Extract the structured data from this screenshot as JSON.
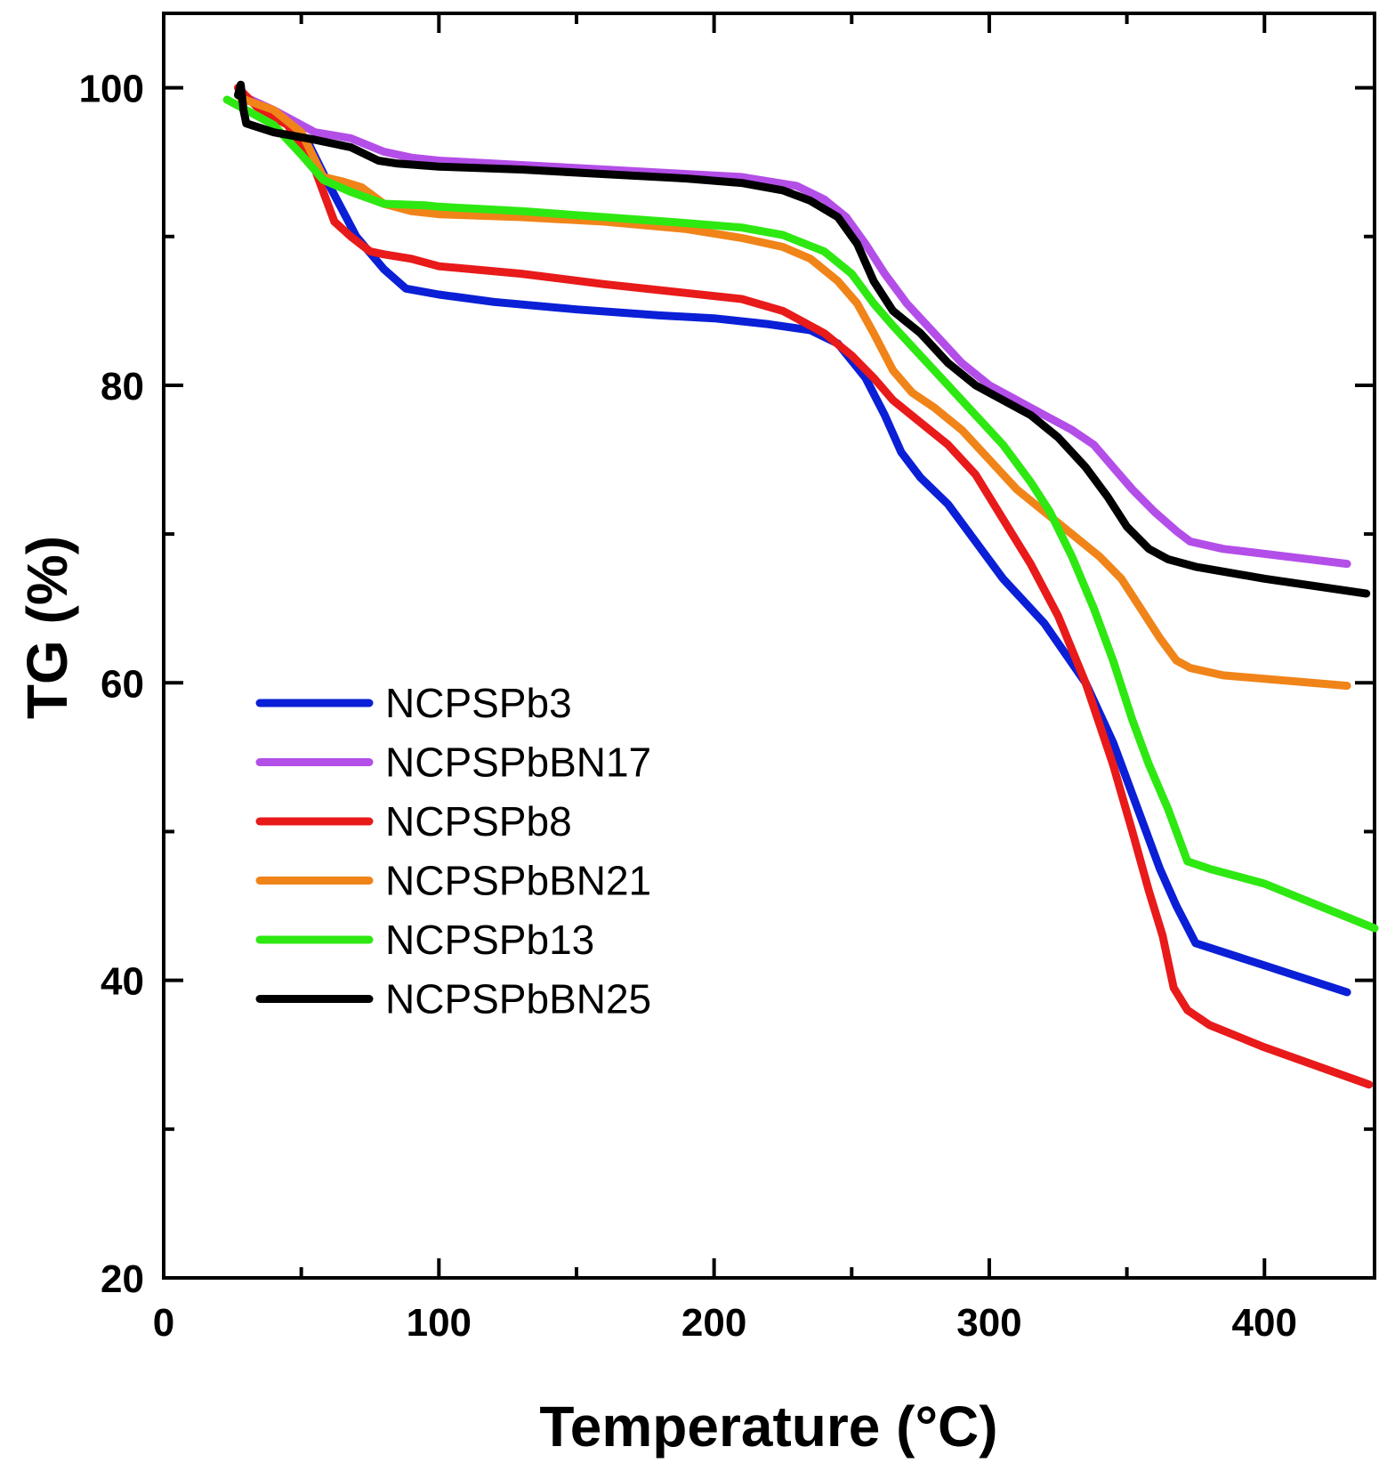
{
  "chart_data": {
    "type": "line",
    "xlabel": "Temperature (°C)",
    "ylabel": "TG (%)",
    "xlim": [
      0,
      440
    ],
    "ylim": [
      20,
      105
    ],
    "x_ticks": [
      0,
      100,
      200,
      300,
      400
    ],
    "y_ticks": [
      20,
      40,
      60,
      80,
      100
    ],
    "grid": false,
    "legend_position": "middle-left",
    "series": [
      {
        "name": "NCPSPb3",
        "color": "#0a1fd6",
        "x": [
          28,
          40,
          52,
          60,
          70,
          80,
          88,
          100,
          120,
          150,
          180,
          200,
          220,
          235,
          245,
          255,
          262,
          268,
          275,
          285,
          295,
          305,
          320,
          335,
          345,
          355,
          362,
          368,
          375,
          400,
          430
        ],
        "y": [
          99.5,
          98.2,
          96.5,
          93.5,
          90.0,
          87.8,
          86.5,
          86.1,
          85.6,
          85.1,
          84.7,
          84.5,
          84.1,
          83.7,
          82.8,
          80.5,
          78.0,
          75.5,
          73.8,
          72.0,
          69.5,
          67.0,
          64.0,
          60.0,
          56.0,
          51.0,
          47.5,
          45.0,
          42.5,
          41.0,
          39.2
        ]
      },
      {
        "name": "NCPSPbBN17",
        "color": "#b44ee8",
        "x": [
          28,
          40,
          55,
          68,
          80,
          90,
          100,
          130,
          160,
          190,
          210,
          230,
          240,
          248,
          255,
          262,
          270,
          280,
          290,
          300,
          310,
          320,
          330,
          338,
          345,
          352,
          360,
          368,
          373,
          385,
          430
        ],
        "y": [
          99.5,
          98.5,
          97.0,
          96.6,
          95.7,
          95.3,
          95.1,
          94.8,
          94.5,
          94.2,
          94.0,
          93.4,
          92.5,
          91.3,
          89.5,
          87.5,
          85.5,
          83.5,
          81.5,
          80.0,
          79.0,
          78.0,
          77.0,
          76.0,
          74.5,
          73.0,
          71.5,
          70.2,
          69.5,
          69.0,
          68.0
        ]
      },
      {
        "name": "NCPSPb8",
        "color": "#e81a1a",
        "x": [
          27,
          35,
          45,
          55,
          62,
          68,
          75,
          80,
          90,
          100,
          130,
          160,
          190,
          210,
          225,
          240,
          250,
          258,
          265,
          275,
          285,
          295,
          305,
          315,
          325,
          335,
          345,
          352,
          358,
          363,
          367,
          372,
          380,
          400,
          438
        ],
        "y": [
          100,
          98.5,
          97.5,
          94.5,
          91.0,
          90.0,
          89.0,
          88.8,
          88.5,
          88.0,
          87.5,
          86.8,
          86.2,
          85.8,
          85.0,
          83.5,
          82.0,
          80.5,
          79.0,
          77.5,
          76.0,
          74.0,
          71.0,
          68.0,
          64.5,
          60.0,
          54.5,
          50.0,
          46.0,
          43.0,
          39.5,
          38.0,
          37.0,
          35.5,
          33.0
        ]
      },
      {
        "name": "NCPSPbBN21",
        "color": "#f08419",
        "x": [
          28,
          40,
          50,
          58,
          65,
          72,
          80,
          90,
          100,
          130,
          160,
          190,
          210,
          225,
          235,
          245,
          252,
          258,
          265,
          272,
          280,
          290,
          300,
          310,
          320,
          330,
          340,
          348,
          355,
          362,
          368,
          373,
          385,
          430
        ],
        "y": [
          99.3,
          98.5,
          97.0,
          94.0,
          93.7,
          93.3,
          92.2,
          91.7,
          91.5,
          91.3,
          91.0,
          90.5,
          89.9,
          89.3,
          88.5,
          87.0,
          85.5,
          83.5,
          81.0,
          79.5,
          78.5,
          77.0,
          75.0,
          73.0,
          71.5,
          70.0,
          68.5,
          67.0,
          65.0,
          63.0,
          61.5,
          61.0,
          60.5,
          59.8
        ]
      },
      {
        "name": "NCPSPb13",
        "color": "#2ee812",
        "x": [
          23,
          30,
          40,
          50,
          58,
          68,
          80,
          95,
          100,
          130,
          160,
          190,
          210,
          225,
          240,
          250,
          258,
          265,
          275,
          285,
          295,
          305,
          315,
          322,
          330,
          338,
          345,
          352,
          358,
          365,
          370,
          372,
          380,
          400,
          440
        ],
        "y": [
          99.2,
          98.5,
          97.5,
          95.5,
          93.8,
          93.0,
          92.2,
          92.1,
          92.0,
          91.7,
          91.3,
          90.9,
          90.6,
          90.1,
          89.0,
          87.5,
          85.5,
          84.0,
          82.0,
          80.0,
          78.0,
          76.0,
          73.5,
          71.5,
          68.5,
          65.0,
          61.5,
          57.5,
          54.5,
          51.5,
          49.0,
          48.0,
          47.5,
          46.5,
          43.5
        ]
      },
      {
        "name": "NCPSPbBN25",
        "color": "#000000",
        "x": [
          27,
          28,
          29,
          30,
          40,
          55,
          68,
          78,
          85,
          100,
          130,
          160,
          190,
          210,
          225,
          235,
          245,
          252,
          258,
          265,
          275,
          285,
          295,
          305,
          315,
          325,
          335,
          343,
          350,
          358,
          365,
          375,
          400,
          437
        ],
        "y": [
          99.5,
          100.2,
          98.5,
          97.6,
          97.0,
          96.5,
          96.0,
          95.1,
          94.9,
          94.7,
          94.5,
          94.2,
          93.9,
          93.6,
          93.1,
          92.4,
          91.3,
          89.5,
          87.0,
          85.0,
          83.5,
          81.5,
          80.0,
          79.0,
          78.0,
          76.5,
          74.5,
          72.5,
          70.5,
          69.0,
          68.3,
          67.8,
          67.0,
          66.0
        ]
      }
    ]
  }
}
